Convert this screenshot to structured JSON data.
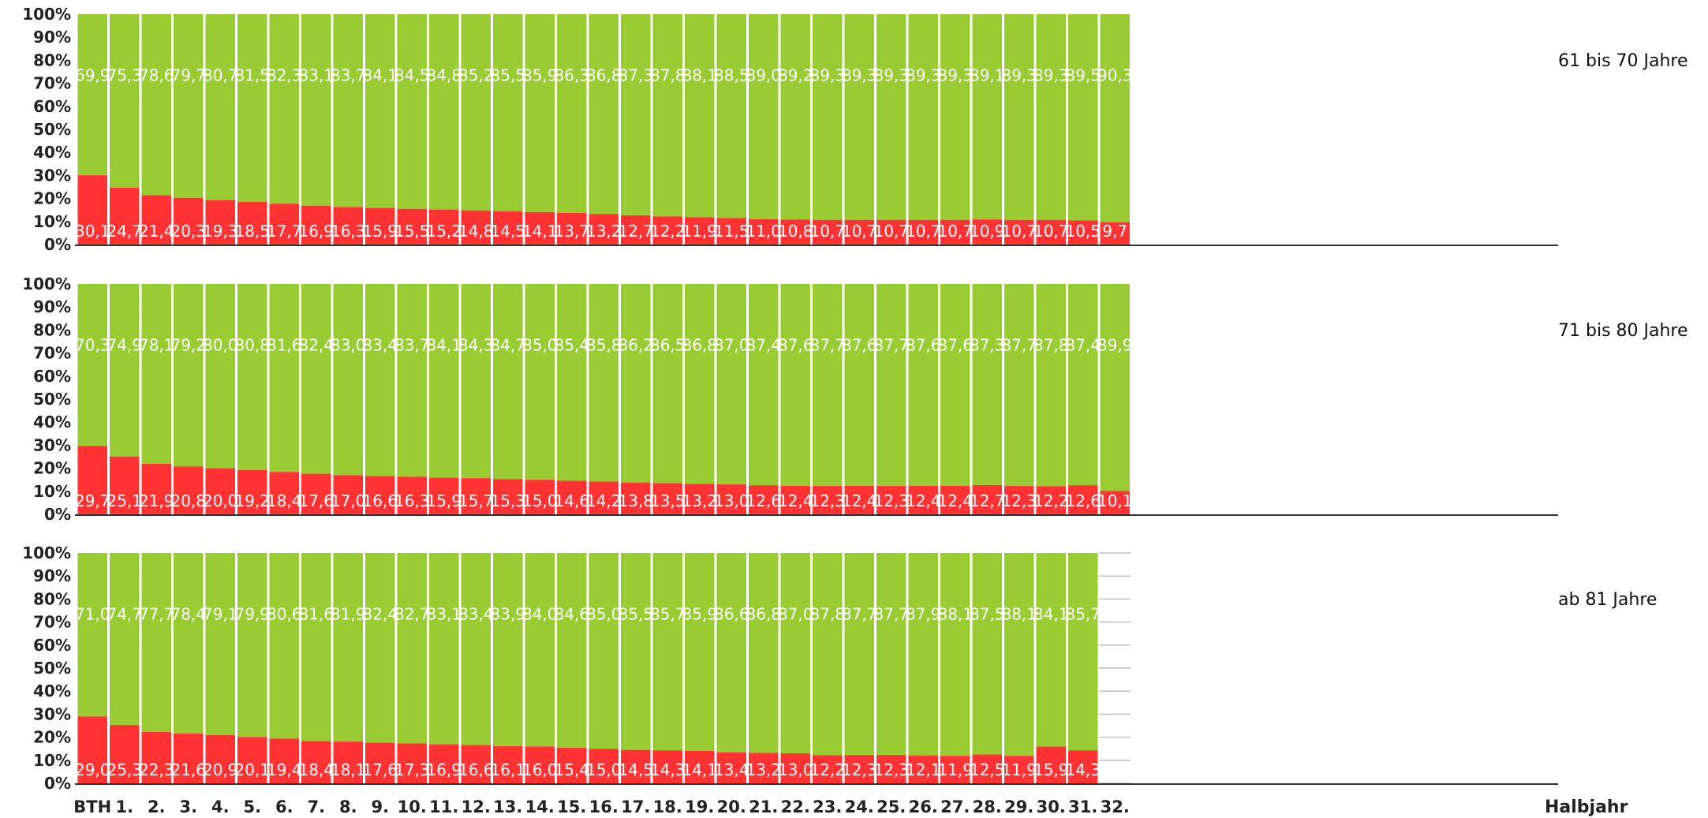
{
  "chart_data": {
    "type": "bar",
    "stacked": true,
    "percent_stacked": true,
    "xlabel": "Halbjahr",
    "categories": [
      "BTH",
      "1.",
      "2.",
      "3.",
      "4.",
      "5.",
      "6.",
      "7.",
      "8.",
      "9.",
      "10.",
      "11.",
      "12.",
      "13.",
      "14.",
      "15.",
      "16.",
      "17.",
      "18.",
      "19.",
      "20.",
      "21.",
      "22.",
      "23.",
      "24.",
      "25.",
      "26.",
      "27.",
      "28.",
      "29.",
      "30.",
      "31.",
      "32."
    ],
    "ylim": [
      0,
      100
    ],
    "yticks": [
      "0%",
      "10%",
      "20%",
      "30%",
      "40%",
      "50%",
      "60%",
      "70%",
      "80%",
      "90%",
      "100%"
    ],
    "colors": {
      "red": "#ff3333",
      "green": "#99cc33"
    },
    "panels": [
      {
        "title": "61 bis 70 Jahre",
        "red_labels": [
          "30,1",
          "24,7",
          "21,4",
          "20,3",
          "19,3",
          "18,5",
          "17,7",
          "16,9",
          "16,3",
          "15,9",
          "15,5",
          "15,2",
          "14,8",
          "14,5",
          "14,1",
          "13,7",
          "13,2",
          "12,7",
          "12,2",
          "11,9",
          "11,5",
          "11,0",
          "10,8",
          "10,7",
          "10,7",
          "10,7",
          "10,7",
          "10,7",
          "10,9",
          "10,7",
          "10,7",
          "10,5",
          "9,7"
        ],
        "green_labels": [
          "69,9",
          "75,3",
          "78,6",
          "79,7",
          "80,7",
          "81,5",
          "82,3",
          "83,1",
          "83,7",
          "84,1",
          "84,5",
          "84,8",
          "85,2",
          "85,5",
          "85,9",
          "86,3",
          "86,8",
          "87,3",
          "87,8",
          "88,1",
          "88,5",
          "89,0",
          "89,2",
          "89,3",
          "89,3",
          "89,3",
          "89,3",
          "89,3",
          "89,1",
          "89,3",
          "89,3",
          "89,5",
          "90,3"
        ]
      },
      {
        "title": "71 bis 80 Jahre",
        "red_labels": [
          "29,7",
          "25,1",
          "21,9",
          "20,8",
          "20,0",
          "19,2",
          "18,4",
          "17,6",
          "17,0",
          "16,6",
          "16,3",
          "15,9",
          "15,7",
          "15,3",
          "15,0",
          "14,6",
          "14,2",
          "13,8",
          "13,5",
          "13,2",
          "13,0",
          "12,6",
          "12,4",
          "12,3",
          "12,4",
          "12,3",
          "12,4",
          "12,4",
          "12,7",
          "12,3",
          "12,2",
          "12,6",
          "10,1"
        ],
        "green_labels": [
          "70,3",
          "74,9",
          "78,1",
          "79,2",
          "80,0",
          "80,8",
          "81,6",
          "82,4",
          "83,0",
          "83,4",
          "83,7",
          "84,1",
          "84,3",
          "84,7",
          "85,0",
          "85,4",
          "85,8",
          "86,2",
          "86,5",
          "86,8",
          "87,0",
          "87,4",
          "87,6",
          "87,7",
          "87,6",
          "87,7",
          "87,6",
          "87,6",
          "87,3",
          "87,7",
          "87,8",
          "87,4",
          "89,9"
        ]
      },
      {
        "title": "ab 81 Jahre",
        "red_labels": [
          "29,0",
          "25,3",
          "22,3",
          "21,6",
          "20,9",
          "20,1",
          "19,4",
          "18,4",
          "18,1",
          "17,6",
          "17,3",
          "16,9",
          "16,6",
          "16,1",
          "16,0",
          "15,4",
          "15,0",
          "14,5",
          "14,3",
          "14,1",
          "13,4",
          "13,2",
          "13,0",
          "12,2",
          "12,3",
          "12,3",
          "12,1",
          "11,9",
          "12,5",
          "11,9",
          "15,9",
          "14,3"
        ],
        "green_labels": [
          "71,0",
          "74,7",
          "77,7",
          "78,4",
          "79,1",
          "79,9",
          "80,6",
          "81,6",
          "81,9",
          "82,4",
          "82,7",
          "83,1",
          "83,4",
          "83,9",
          "84,0",
          "84,6",
          "85,0",
          "85,5",
          "85,7",
          "85,9",
          "86,6",
          "86,8",
          "87,0",
          "87,8",
          "87,7",
          "87,7",
          "87,9",
          "88,1",
          "87,5",
          "88,1",
          "84,1",
          "85,7"
        ]
      }
    ]
  }
}
